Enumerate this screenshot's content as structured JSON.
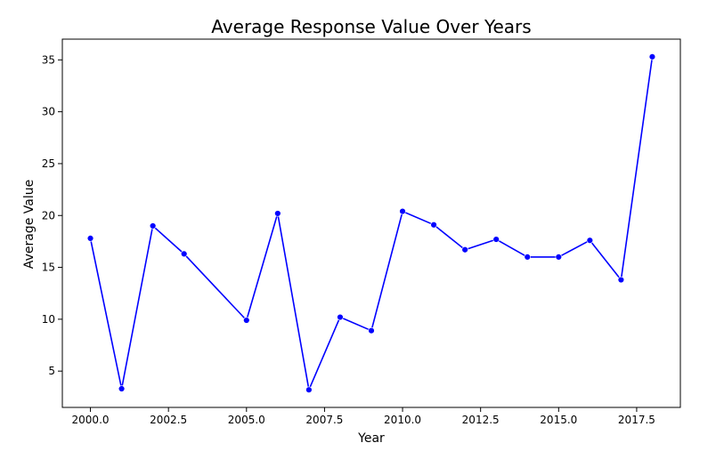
{
  "chart_data": {
    "type": "line",
    "title": "Average Response Value Over Years",
    "xlabel": "Year",
    "ylabel": "Average Value",
    "xlim": [
      1999.1,
      2018.9
    ],
    "ylim": [
      1.5,
      37.0
    ],
    "x_ticks": [
      2000.0,
      2002.5,
      2005.0,
      2007.5,
      2010.0,
      2012.5,
      2015.0,
      2017.5
    ],
    "x_tick_labels": [
      "2000.0",
      "2002.5",
      "2005.0",
      "2007.5",
      "2010.0",
      "2012.5",
      "2015.0",
      "2017.5"
    ],
    "y_ticks": [
      5,
      10,
      15,
      20,
      25,
      30,
      35
    ],
    "y_tick_labels": [
      "5",
      "10",
      "15",
      "20",
      "25",
      "30",
      "35"
    ],
    "grid": false,
    "series": [
      {
        "color": "#0000ff",
        "marker": "circle",
        "x": [
          2000,
          2001,
          2002,
          2003,
          2005,
          2006,
          2007,
          2008,
          2009,
          2010,
          2011,
          2012,
          2013,
          2014,
          2015,
          2016,
          2017,
          2018
        ],
        "values": [
          17.8,
          3.3,
          19.0,
          16.3,
          9.9,
          20.2,
          3.2,
          10.2,
          8.9,
          20.4,
          19.1,
          16.7,
          17.7,
          16.0,
          16.0,
          17.6,
          13.8,
          35.3
        ]
      }
    ]
  }
}
